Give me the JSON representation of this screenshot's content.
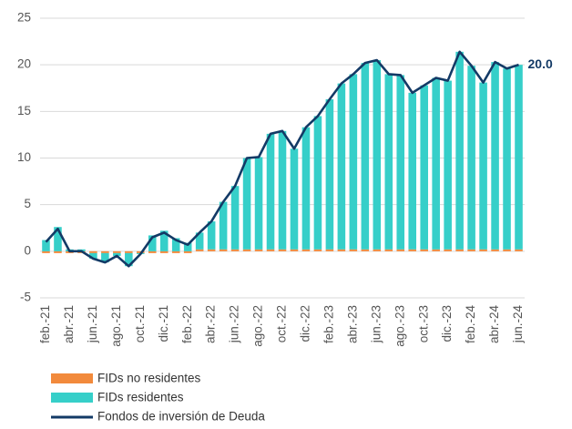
{
  "chart_data": {
    "type": "stacked-bar-line",
    "categories": [
      "feb.-21",
      null,
      "abr.-21",
      null,
      "jun.-21",
      null,
      "ago.-21",
      null,
      "oct.-21",
      null,
      "dic.-21",
      null,
      "feb.-22",
      null,
      "abr.-22",
      null,
      "jun.-22",
      null,
      "ago.-22",
      null,
      "oct.-22",
      null,
      "dic.-22",
      null,
      "feb.-23",
      null,
      "abr.-23",
      null,
      "jun.-23",
      null,
      "ago.-23",
      null,
      "oct.-23",
      null,
      "dic.-23",
      null,
      "feb.-24",
      null,
      "abr.-24",
      null,
      "jun.-24"
    ],
    "series": [
      {
        "name": "FIDs no residentes",
        "type": "bar",
        "color": "#f28a3c",
        "values": [
          -0.2,
          -0.2,
          -0.2,
          -0.2,
          -0.2,
          -0.2,
          -0.2,
          -0.2,
          -0.2,
          -0.2,
          -0.2,
          -0.2,
          -0.2,
          0.2,
          0.2,
          0.2,
          0.2,
          0.2,
          0.2,
          0.2,
          0.2,
          0.2,
          0.2,
          0.2,
          0.2,
          0.2,
          0.2,
          0.2,
          0.2,
          0.2,
          0.2,
          0.2,
          0.2,
          0.2,
          0.2,
          0.2,
          0.2,
          0.2,
          0.2,
          0.2,
          0.2
        ]
      },
      {
        "name": "FIDs residentes",
        "type": "bar",
        "color": "#36cfc9",
        "values": [
          1.2,
          2.6,
          0.2,
          0.2,
          -0.6,
          -1.0,
          -0.3,
          -1.4,
          -0.1,
          1.7,
          2.2,
          1.4,
          0.9,
          1.8,
          3.0,
          5.1,
          6.8,
          9.8,
          9.9,
          12.4,
          12.7,
          10.8,
          13.1,
          14.3,
          16.1,
          17.8,
          18.8,
          20.0,
          20.3,
          18.8,
          18.7,
          16.8,
          17.6,
          18.4,
          18.1,
          21.2,
          19.7,
          17.9,
          20.1,
          19.4,
          19.8
        ]
      },
      {
        "name": "Fondos de inversión de Deuda",
        "type": "line",
        "color": "#133a66",
        "values": [
          1.0,
          2.4,
          0.0,
          0.0,
          -0.8,
          -1.2,
          -0.5,
          -1.6,
          -0.3,
          1.5,
          2.0,
          1.2,
          0.7,
          2.0,
          3.2,
          5.3,
          7.0,
          10.0,
          10.1,
          12.6,
          12.9,
          11.0,
          13.3,
          14.5,
          16.3,
          18.0,
          19.0,
          20.2,
          20.5,
          19.0,
          18.9,
          17.0,
          17.8,
          18.6,
          18.3,
          21.4,
          19.9,
          18.1,
          20.3,
          19.6,
          20.0
        ],
        "end_label": "20.0"
      }
    ],
    "ylim": [
      -5,
      25
    ],
    "yticks": [
      -5,
      0,
      5,
      10,
      15,
      20,
      25
    ],
    "grid": true
  }
}
